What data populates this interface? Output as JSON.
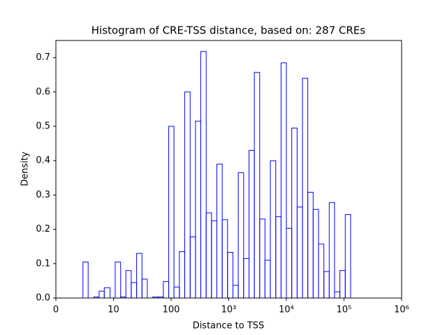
{
  "chart_data": {
    "type": "histogram",
    "title": "Histogram of CRE-TSS distance, based on: 287 CREs",
    "x_label": "Distance to TSS",
    "y_label": "Density",
    "xscale": "symlog",
    "color": "#0000ff",
    "bins": [
      4.7,
      5.6,
      6.6,
      7.5,
      8.4,
      9.4,
      10.7,
      13.3,
      16.4,
      20.3,
      25.2,
      31.2,
      38.6,
      47.9,
      59.2,
      73.3,
      90.9,
      112,
      139,
      172,
      214,
      265,
      327,
      406,
      502,
      622,
      771,
      953,
      1183,
      1462,
      1811,
      2249,
      2780,
      3443,
      4256,
      5272,
      6546,
      8091,
      10000,
      12400,
      15380,
      19050,
      23550,
      29170,
      36140,
      44770,
      55460,
      68550,
      84920,
      105200,
      130300
    ],
    "values": [
      0.105,
      0,
      0.003,
      0.02,
      0.03,
      0,
      0.105,
      0.003,
      0.08,
      0.045,
      0.13,
      0.055,
      0,
      0.003,
      0.003,
      0.048,
      0.5,
      0.032,
      0.135,
      0.6,
      0.178,
      0.515,
      0.718,
      0.248,
      0.225,
      0.39,
      0.228,
      0.133,
      0.037,
      0.365,
      0.115,
      0.43,
      0.657,
      0.23,
      0.11,
      0.4,
      0.237,
      0.685,
      0.203,
      0.495,
      0.265,
      0.64,
      0.308,
      0.258,
      0.157,
      0.077,
      0.278,
      0.018,
      0.08,
      0.243
    ],
    "xlim": [
      0,
      1000000
    ],
    "xticks": [
      0,
      10,
      100,
      {
        "value": 1000,
        "label": "10³"
      },
      {
        "value": 10000,
        "label": "10⁴"
      },
      {
        "value": 100000,
        "label": "10⁵"
      },
      {
        "value": 1000000,
        "label": "10⁶"
      }
    ],
    "ylim": [
      0,
      0.75
    ],
    "yticks": [
      {
        "value": 0,
        "label": "0.0"
      },
      0.1,
      0.2,
      0.3,
      0.4,
      0.5,
      0.6,
      0.7
    ]
  }
}
